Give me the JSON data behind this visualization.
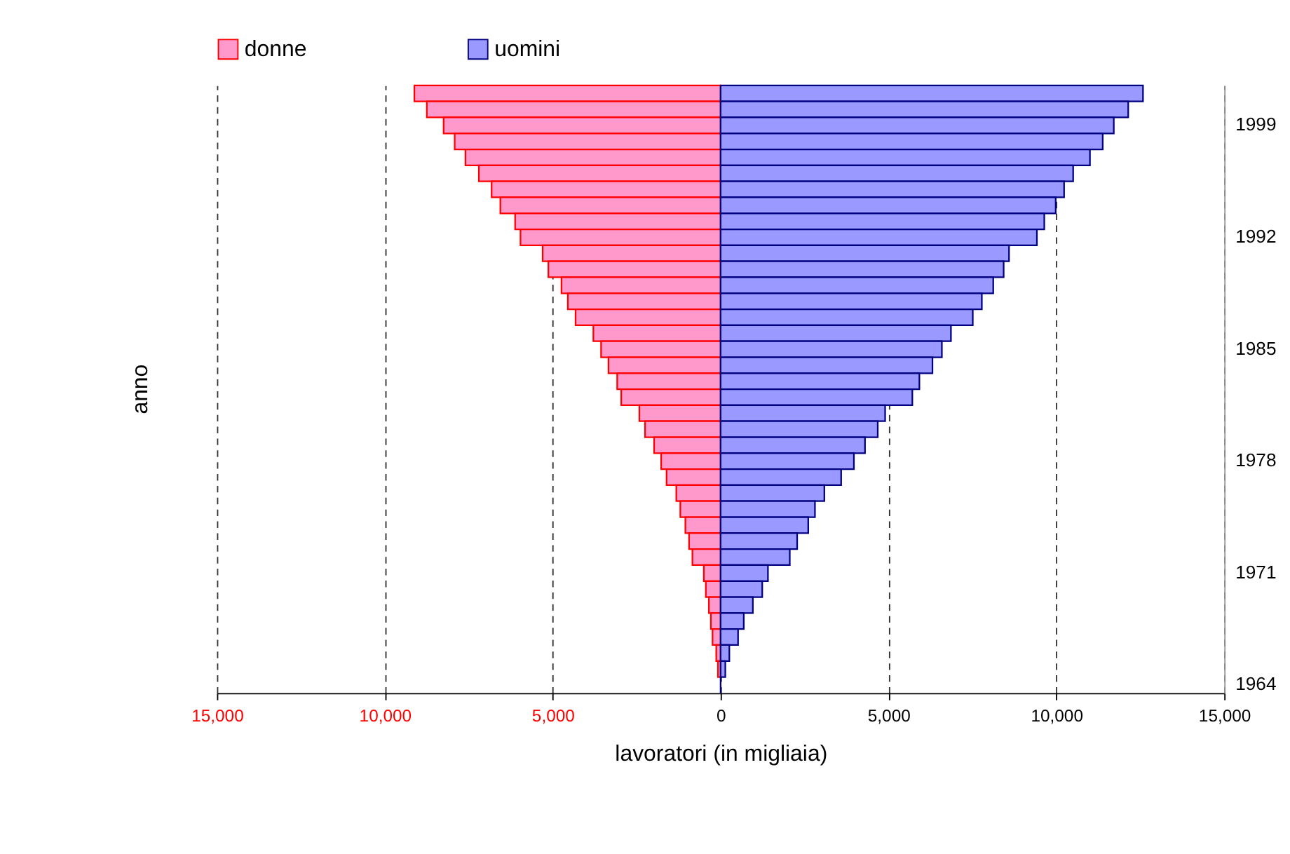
{
  "chart_data": {
    "type": "bar",
    "orientation": "horizontal",
    "xlabel": "lavoratori (in migliaia)",
    "ylabel": "anno",
    "categories": [
      null,
      null,
      "1999",
      null,
      null,
      null,
      null,
      null,
      null,
      "1992",
      null,
      null,
      null,
      null,
      null,
      null,
      "1985",
      null,
      null,
      null,
      null,
      null,
      null,
      "1978",
      null,
      null,
      null,
      null,
      null,
      null,
      "1971",
      null,
      null,
      null,
      null,
      null,
      null,
      "1964"
    ],
    "series": [
      {
        "name": "donne",
        "color": "#ff99cc",
        "values": [
          -9120,
          -8750,
          -8250,
          -7920,
          -7600,
          -7200,
          -6820,
          -6560,
          -6120,
          -5960,
          -5300,
          -5130,
          -4740,
          -4550,
          -4320,
          -3790,
          -3560,
          -3340,
          -3080,
          -2960,
          -2420,
          -2250,
          -1980,
          -1770,
          -1610,
          -1320,
          -1200,
          -1050,
          -940,
          -840,
          -500,
          -440,
          -350,
          -290,
          -240,
          -130,
          -80,
          null
        ]
      },
      {
        "name": "uomini",
        "color": "#9999ff",
        "values": [
          12580,
          12140,
          11710,
          11380,
          11000,
          10500,
          10230,
          9980,
          9640,
          9420,
          8590,
          8430,
          8120,
          7780,
          7510,
          6860,
          6590,
          6310,
          5920,
          5710,
          4900,
          4680,
          4300,
          3970,
          3590,
          3090,
          2810,
          2610,
          2280,
          2060,
          1410,
          1240,
          960,
          690,
          520,
          260,
          140,
          0
        ]
      }
    ],
    "xlim": [
      -15000,
      15000
    ],
    "xticks": [
      {
        "value": -15000,
        "label": "15,000"
      },
      {
        "value": -10000,
        "label": "10,000"
      },
      {
        "value": -5000,
        "label": "5,000"
      },
      0,
      {
        "value": 5000,
        "label": "5,000"
      },
      {
        "value": 10000,
        "label": "10,000"
      },
      {
        "value": 15000,
        "label": "15,000"
      }
    ],
    "grid": "x",
    "legend": "top",
    "stacked": true
  }
}
